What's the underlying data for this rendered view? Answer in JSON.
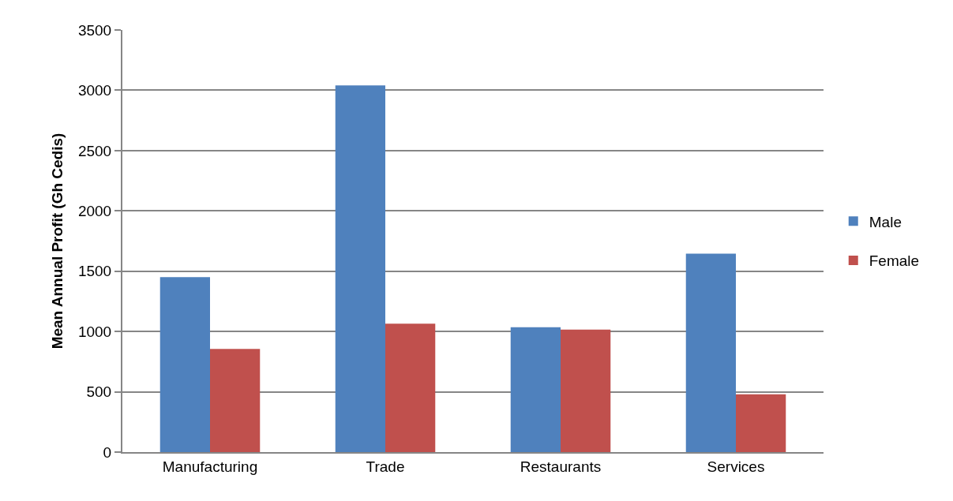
{
  "chart_data": {
    "type": "bar",
    "ylabel": "Mean Annual Profit (Gh Cedis)",
    "categories": [
      "Manufacturing",
      "Trade",
      "Restaurants",
      "Services"
    ],
    "series": [
      {
        "name": "Male",
        "color": "#4f81bd",
        "values": [
          1450,
          3040,
          1035,
          1645
        ]
      },
      {
        "name": "Female",
        "color": "#c0504d",
        "values": [
          855,
          1065,
          1015,
          480
        ]
      }
    ],
    "ylim": [
      0,
      3500
    ],
    "yticks": [
      0,
      500,
      1000,
      1500,
      2000,
      2500,
      3000,
      3500
    ],
    "grid": "y",
    "legend": "right"
  }
}
